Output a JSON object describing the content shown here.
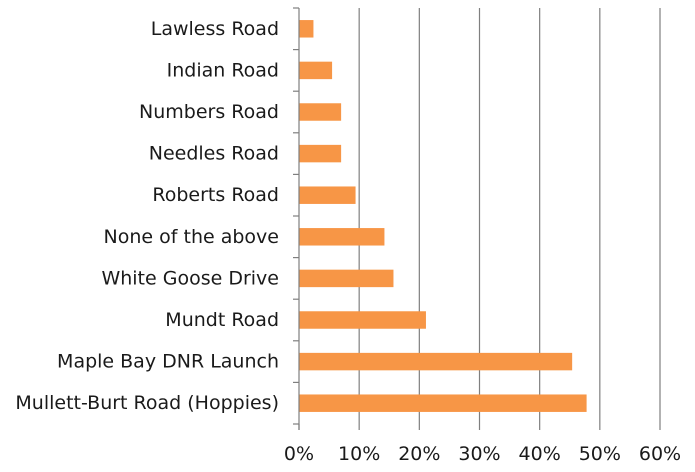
{
  "chart_data": {
    "type": "bar",
    "orientation": "horizontal",
    "categories": [
      "Lawless Road",
      "Indian Road",
      "Numbers Road",
      "Needles Road",
      "Roberts Road",
      "None of the above",
      "White Goose Drive",
      "Mundt Road",
      "Maple Bay DNR Launch",
      "Mullett-Burt Road (Hoppies)"
    ],
    "values": [
      2.4,
      5.5,
      7.0,
      7.0,
      9.4,
      14.2,
      15.7,
      21.1,
      45.4,
      47.8
    ],
    "value_unit": "%",
    "xlim": [
      0,
      60
    ],
    "x_ticks": [
      0,
      10,
      20,
      30,
      40,
      50,
      60
    ],
    "x_tick_labels": [
      "0%",
      "10%",
      "20%",
      "30%",
      "40%",
      "50%",
      "60%"
    ],
    "grid": "vertical",
    "legend": "none",
    "bar_color": "#F79646",
    "grid_color": "#7f7f7f"
  }
}
